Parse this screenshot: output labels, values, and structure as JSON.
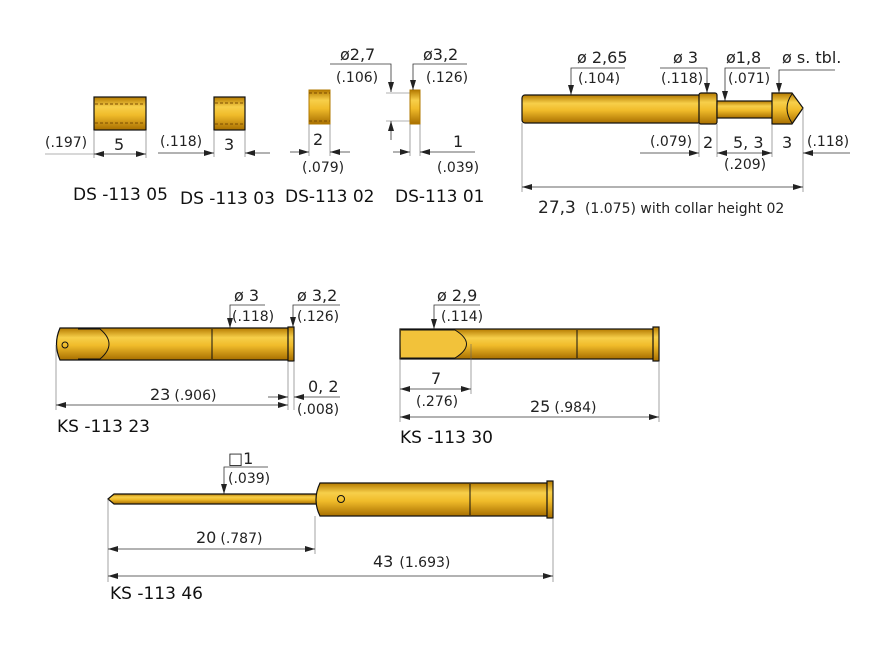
{
  "colors": {
    "gold_light": "#f7cf4a",
    "gold_mid": "#e8a912",
    "gold_dark": "#a86f00",
    "line": "#333333"
  },
  "ds05": {
    "length": "5",
    "length_in": "(.197)",
    "label": "DS -113  05"
  },
  "ds03": {
    "length": "3",
    "length_in": "(.118)",
    "label": "DS -113  03"
  },
  "ds02": {
    "length": "2",
    "length_in": "(.079)",
    "diameter": "ø2,7",
    "diameter_in": "(.106)",
    "label": "DS-113 02"
  },
  "ds01": {
    "length": "1",
    "length_in": "(.039)",
    "diameter": "ø3,2",
    "diameter_in": "(.126)",
    "label": "DS-113 01"
  },
  "pin": {
    "d_shaft": "ø 2,65",
    "d_shaft_in": "(.104)",
    "d_collar": "ø 3",
    "d_collar_in": "(.118)",
    "d_neck": "ø1,8",
    "d_neck_in": "(.071)",
    "d_head": "ø s. tbl.",
    "collar_in": "(.079)",
    "collar": "2",
    "neck": "5, 3",
    "neck_in": "(.209)",
    "head": "3",
    "head_in": "(.118)",
    "total": "27,3",
    "total_note": "(1.075) with collar height 02"
  },
  "ks23": {
    "d1": "ø 3",
    "d1_in": "(.118)",
    "d2": "ø 3,2",
    "d2_in": "(.126)",
    "length": "23",
    "length_in": "(.906)",
    "collar": "0, 2",
    "collar_in": "(.008)",
    "label": "KS -113  23"
  },
  "ks30": {
    "d1": "ø 2,9",
    "d1_in": "(.114)",
    "tip": "7",
    "tip_in": "(.276)",
    "length": "25",
    "length_in": "(.984)",
    "label": "KS -113  30"
  },
  "ks46": {
    "sq": "□1",
    "sq_in": "(.039)",
    "needle": "20",
    "needle_in": "(.787)",
    "length": "43",
    "length_in": "(1.693)",
    "label": "KS -113  46"
  }
}
